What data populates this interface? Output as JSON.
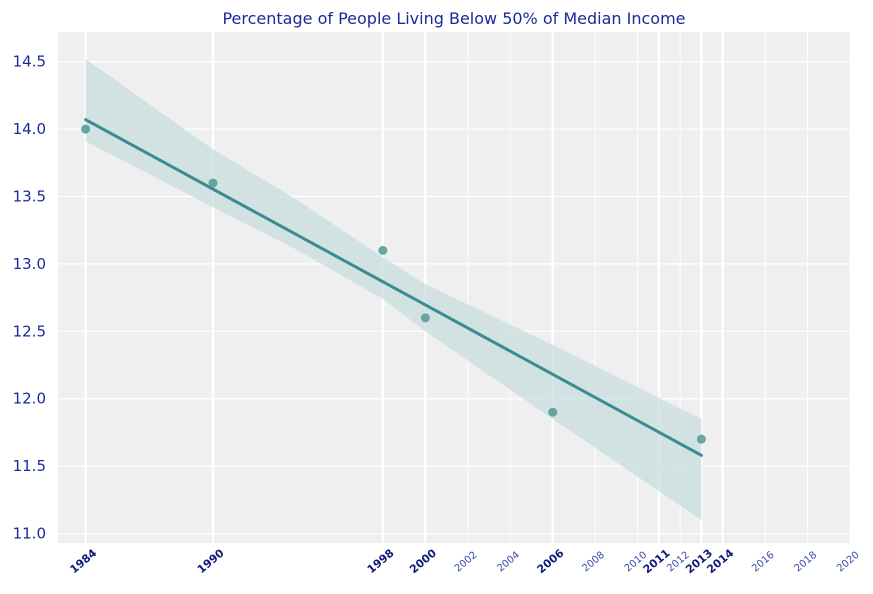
{
  "chart_data": {
    "type": "scatter",
    "title": "Percentage of People Living Below 50% of Median Income",
    "xlabel": "",
    "ylabel": "",
    "x": [
      1984,
      1990,
      1998,
      2000,
      2006,
      2013
    ],
    "y": [
      14.0,
      13.6,
      13.1,
      12.6,
      11.9,
      11.7
    ],
    "regression": {
      "x_start": 1984,
      "y_start": 14.07,
      "x_end": 2013,
      "y_end": 11.58
    },
    "confidence_band": {
      "x": [
        1984,
        1990,
        1994,
        1998,
        2000,
        2006,
        2013
      ],
      "upper": [
        14.52,
        13.85,
        13.47,
        13.05,
        12.85,
        12.4,
        11.85
      ],
      "lower": [
        13.91,
        13.42,
        13.1,
        12.74,
        12.5,
        11.85,
        11.1
      ]
    },
    "xlim": [
      1982.7,
      2020
    ],
    "ylim": [
      10.93,
      14.72
    ],
    "yticks": [
      "11.0",
      "11.5",
      "12.0",
      "12.5",
      "13.0",
      "13.5",
      "14.0",
      "14.5"
    ],
    "ytick_values": [
      11.0,
      11.5,
      12.0,
      12.5,
      13.0,
      13.5,
      14.0,
      14.5
    ],
    "xticks_major": [
      "1984",
      "1990",
      "1998",
      "2000",
      "2006",
      "2011",
      "2013",
      "2014"
    ],
    "xticks_minor": [
      "2002",
      "2004",
      "2008",
      "2010",
      "2012",
      "2016",
      "2018",
      "2020"
    ],
    "grid": true,
    "colors": {
      "background": "#f0eff0",
      "grid": "#ffffff",
      "line": "#3a8c91",
      "points": "#5a9c9a",
      "band": "#c8dedd",
      "title": "#1a2a9c"
    }
  }
}
